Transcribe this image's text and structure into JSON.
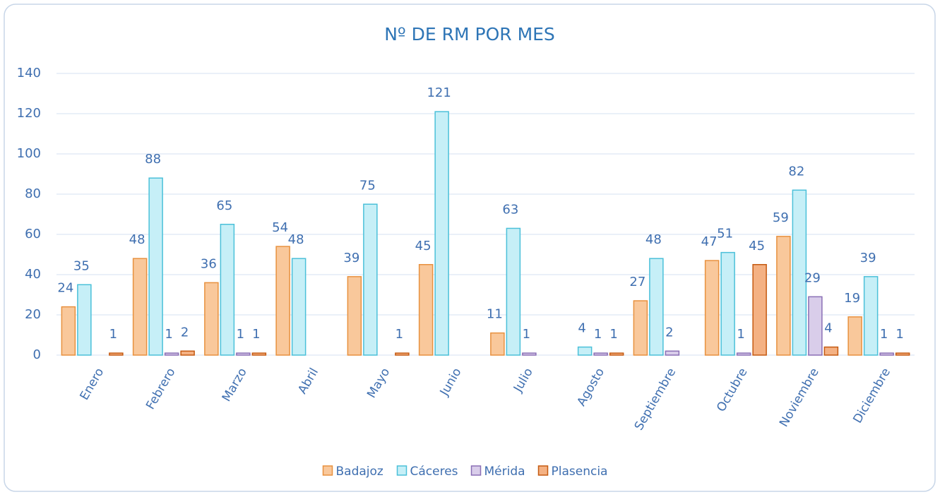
{
  "chart_data": {
    "type": "bar",
    "title": "Nº DE RM POR MES",
    "categories": [
      "Enero",
      "Febrero",
      "Marzo",
      "Abril",
      "Mayo",
      "Junio",
      "Julio",
      "Agosto",
      "Septiembre",
      "Octubre",
      "Noviembre",
      "Diciembre"
    ],
    "series": [
      {
        "name": "Badajoz",
        "color": "#f9c89b",
        "values": [
          24,
          48,
          36,
          54,
          39,
          45,
          11,
          null,
          27,
          47,
          59,
          19
        ]
      },
      {
        "name": "Cáceres",
        "color": "#c6eff7",
        "values": [
          35,
          88,
          65,
          48,
          75,
          121,
          63,
          4,
          48,
          51,
          82,
          39
        ]
      },
      {
        "name": "Mérida",
        "color": "#d9cdea",
        "values": [
          null,
          1,
          1,
          null,
          null,
          null,
          1,
          1,
          2,
          1,
          29,
          1
        ]
      },
      {
        "name": "Plasencia",
        "color": "#f4b183",
        "values": [
          1,
          2,
          1,
          null,
          1,
          null,
          null,
          1,
          null,
          45,
          4,
          1
        ]
      }
    ],
    "ylim": [
      0,
      140
    ],
    "yticks": [
      0,
      20,
      40,
      60,
      80,
      100,
      120,
      140
    ],
    "grid": true,
    "legend": "bottom"
  }
}
